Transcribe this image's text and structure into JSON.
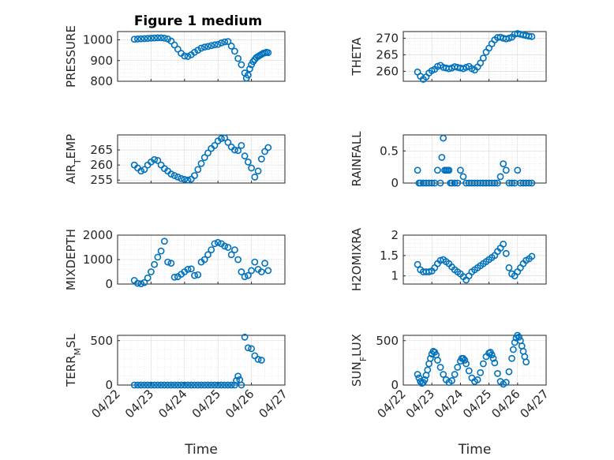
{
  "figure": {
    "title": "Figure 1 medium",
    "marker_color": "#0072bd"
  },
  "chart_data": [
    {
      "type": "scatter",
      "id": "pressure",
      "ylabel": "PRESSURE",
      "ylim": [
        800,
        1040
      ],
      "yticks": [
        800,
        900,
        1000
      ],
      "xlim": [
        "04/22",
        "04/27"
      ],
      "xticks": [
        "04/22",
        "04/23",
        "04/24",
        "04/25",
        "04/26",
        "04/27"
      ],
      "grid": true,
      "series": [
        {
          "x": [
            0.5,
            0.6,
            0.7,
            0.8,
            0.9,
            1.0,
            1.1,
            1.2,
            1.3,
            1.4,
            1.5,
            1.6,
            1.7,
            1.8,
            1.9,
            2.0,
            2.1,
            2.2,
            2.3,
            2.4,
            2.5,
            2.6,
            2.7,
            2.8,
            2.9,
            3.0,
            3.1,
            3.2,
            3.3,
            3.4,
            3.5,
            3.6,
            3.7,
            3.8,
            3.85,
            3.9,
            3.95,
            4.0,
            4.05,
            4.1,
            4.15,
            4.2,
            4.25,
            4.3,
            4.35,
            4.4,
            4.45,
            4.5
          ],
          "y": [
            1003,
            1004,
            1005,
            1006,
            1007,
            1008,
            1009,
            1010,
            1010,
            1008,
            1004,
            994,
            975,
            955,
            935,
            922,
            920,
            928,
            940,
            950,
            960,
            965,
            968,
            972,
            976,
            978,
            985,
            990,
            992,
            970,
            945,
            910,
            880,
            840,
            815,
            830,
            860,
            880,
            895,
            905,
            915,
            920,
            925,
            930,
            935,
            937,
            940,
            938
          ]
        }
      ]
    },
    {
      "type": "scatter",
      "id": "theta",
      "ylabel": "THETA",
      "ylim": [
        257,
        272
      ],
      "yticks": [
        260,
        265,
        270
      ],
      "xlim": [
        "04/22",
        "04/27"
      ],
      "xticks": [
        "04/22",
        "04/23",
        "04/24",
        "04/25",
        "04/26",
        "04/27"
      ],
      "grid": true,
      "series": [
        {
          "x": [
            0.5,
            0.6,
            0.7,
            0.8,
            0.9,
            1.0,
            1.1,
            1.2,
            1.3,
            1.4,
            1.5,
            1.6,
            1.7,
            1.8,
            1.9,
            2.0,
            2.1,
            2.2,
            2.3,
            2.4,
            2.5,
            2.6,
            2.7,
            2.8,
            2.9,
            3.0,
            3.1,
            3.2,
            3.3,
            3.4,
            3.5,
            3.6,
            3.7,
            3.8,
            3.9,
            4.0,
            4.1,
            4.2,
            4.3,
            4.4,
            4.5
          ],
          "y": [
            259.8,
            258.5,
            257.6,
            258.3,
            259.5,
            260.2,
            260.6,
            261.5,
            261.8,
            261.2,
            261.0,
            260.8,
            261.0,
            261.4,
            261.2,
            261.0,
            260.8,
            261.2,
            261.5,
            260.8,
            260.4,
            261.3,
            262.5,
            264.0,
            265.8,
            267.0,
            268.3,
            269.5,
            270.2,
            270.3,
            270.0,
            269.8,
            270.0,
            270.3,
            271.2,
            271.4,
            271.2,
            271.0,
            270.8,
            270.6,
            270.5
          ]
        }
      ]
    },
    {
      "type": "scatter",
      "id": "air_temp",
      "ylabel": "AIR_TEMP",
      "ylim": [
        254,
        270
      ],
      "yticks": [
        255,
        260,
        265
      ],
      "xlim": [
        "04/22",
        "04/27"
      ],
      "xticks": [
        "04/22",
        "04/23",
        "04/24",
        "04/25",
        "04/26",
        "04/27"
      ],
      "grid": true,
      "series": [
        {
          "x": [
            0.5,
            0.6,
            0.7,
            0.8,
            0.9,
            1.0,
            1.1,
            1.2,
            1.3,
            1.4,
            1.5,
            1.6,
            1.7,
            1.8,
            1.9,
            2.0,
            2.1,
            2.2,
            2.3,
            2.4,
            2.5,
            2.6,
            2.7,
            2.8,
            2.9,
            3.0,
            3.1,
            3.2,
            3.3,
            3.4,
            3.5,
            3.6,
            3.7,
            3.8,
            3.9,
            4.0,
            4.1,
            4.2,
            4.3,
            4.4,
            4.5
          ],
          "y": [
            260.0,
            259.0,
            258.0,
            258.5,
            260.0,
            261.0,
            261.8,
            261.5,
            260.0,
            258.8,
            258.0,
            257.0,
            256.5,
            256.0,
            255.5,
            255.2,
            255.0,
            255.3,
            256.5,
            258.5,
            260.5,
            262.5,
            264.0,
            265.5,
            266.5,
            268.0,
            268.8,
            269.0,
            267.5,
            266.0,
            265.0,
            264.8,
            266.5,
            263.0,
            261.0,
            259.0,
            256.0,
            258.0,
            262.0,
            264.5,
            265.8
          ]
        }
      ]
    },
    {
      "type": "scatter",
      "id": "rainfall",
      "ylabel": "RAINFALL",
      "ylim": [
        0,
        0.75
      ],
      "yticks": [
        0,
        0.5
      ],
      "xlim": [
        "04/22",
        "04/27"
      ],
      "xticks": [
        "04/22",
        "04/23",
        "04/24",
        "04/25",
        "04/26",
        "04/27"
      ],
      "grid": true,
      "series": [
        {
          "x": [
            0.5,
            0.55,
            0.6,
            0.7,
            0.8,
            0.9,
            1.0,
            1.1,
            1.2,
            1.3,
            1.35,
            1.4,
            1.45,
            1.5,
            1.55,
            1.6,
            1.65,
            1.7,
            1.8,
            1.9,
            2.0,
            2.1,
            2.2,
            2.3,
            2.4,
            2.5,
            2.6,
            2.7,
            2.8,
            2.9,
            3.0,
            3.1,
            3.2,
            3.3,
            3.4,
            3.5,
            3.6,
            3.7,
            3.8,
            3.9,
            4.0,
            4.1,
            4.2,
            4.3,
            4.4,
            4.5
          ],
          "y": [
            0.2,
            0,
            0,
            0,
            0,
            0,
            0,
            0,
            0.2,
            0,
            0.4,
            0.7,
            0.2,
            0.2,
            0.2,
            0.2,
            0,
            0,
            0,
            0,
            0.2,
            0.1,
            0,
            0,
            0,
            0,
            0,
            0,
            0,
            0,
            0,
            0,
            0,
            0,
            0.1,
            0.3,
            0.2,
            0,
            0,
            0,
            0.2,
            0,
            0,
            0,
            0,
            0
          ]
        }
      ]
    },
    {
      "type": "scatter",
      "id": "mixdepth",
      "ylabel": "MIXDEPTH",
      "ylim": [
        0,
        2000
      ],
      "yticks": [
        0,
        1000,
        2000
      ],
      "xlim": [
        "04/22",
        "04/27"
      ],
      "xticks": [
        "04/22",
        "04/23",
        "04/24",
        "04/25",
        "04/26",
        "04/27"
      ],
      "grid": true,
      "series": [
        {
          "x": [
            0.5,
            0.6,
            0.7,
            0.8,
            0.9,
            1.0,
            1.1,
            1.2,
            1.3,
            1.4,
            1.5,
            1.6,
            1.7,
            1.8,
            1.9,
            2.0,
            2.1,
            2.2,
            2.3,
            2.4,
            2.5,
            2.6,
            2.7,
            2.8,
            2.9,
            3.0,
            3.1,
            3.2,
            3.3,
            3.4,
            3.5,
            3.6,
            3.7,
            3.8,
            3.9,
            4.0,
            4.1,
            4.2,
            4.3,
            4.4,
            4.5
          ],
          "y": [
            150,
            30,
            10,
            60,
            250,
            500,
            800,
            1100,
            1350,
            1750,
            900,
            850,
            280,
            300,
            400,
            500,
            600,
            620,
            350,
            380,
            900,
            1000,
            1200,
            1400,
            1650,
            1700,
            1650,
            1550,
            1500,
            1200,
            1400,
            1000,
            500,
            300,
            350,
            550,
            900,
            600,
            500,
            850,
            550
          ]
        }
      ]
    },
    {
      "type": "scatter",
      "id": "h2omixra",
      "ylabel": "H2OMIXRA",
      "ylim": [
        0.8,
        2.0
      ],
      "yticks": [
        1,
        1.5,
        2
      ],
      "xlim": [
        "04/22",
        "04/27"
      ],
      "xticks": [
        "04/22",
        "04/23",
        "04/24",
        "04/25",
        "04/26",
        "04/27"
      ],
      "grid": true,
      "series": [
        {
          "x": [
            0.5,
            0.6,
            0.7,
            0.8,
            0.9,
            1.0,
            1.1,
            1.2,
            1.3,
            1.4,
            1.5,
            1.6,
            1.7,
            1.8,
            1.9,
            2.0,
            2.1,
            2.2,
            2.3,
            2.4,
            2.5,
            2.6,
            2.7,
            2.8,
            2.9,
            3.0,
            3.1,
            3.2,
            3.3,
            3.4,
            3.5,
            3.6,
            3.7,
            3.8,
            3.9,
            4.0,
            4.1,
            4.2,
            4.3,
            4.4,
            4.5
          ],
          "y": [
            1.28,
            1.15,
            1.1,
            1.1,
            1.1,
            1.12,
            1.2,
            1.3,
            1.38,
            1.4,
            1.35,
            1.3,
            1.22,
            1.15,
            1.1,
            1.05,
            0.98,
            0.9,
            1.0,
            1.1,
            1.15,
            1.2,
            1.25,
            1.3,
            1.35,
            1.4,
            1.45,
            1.5,
            1.6,
            1.68,
            1.78,
            1.55,
            1.2,
            1.05,
            1.0,
            1.1,
            1.2,
            1.3,
            1.38,
            1.42,
            1.48
          ]
        }
      ]
    },
    {
      "type": "scatter",
      "id": "terr_msl",
      "ylabel": "TERR_MSL",
      "ylim": [
        0,
        560
      ],
      "yticks": [
        0,
        500
      ],
      "xlim": [
        "04/22",
        "04/27"
      ],
      "xticks": [
        "04/22",
        "04/23",
        "04/24",
        "04/25",
        "04/26",
        "04/27"
      ],
      "grid": true,
      "series": [
        {
          "x": [
            0.5,
            0.6,
            0.7,
            0.8,
            0.9,
            1.0,
            1.1,
            1.2,
            1.3,
            1.4,
            1.5,
            1.6,
            1.7,
            1.8,
            1.9,
            2.0,
            2.1,
            2.2,
            2.3,
            2.4,
            2.5,
            2.6,
            2.7,
            2.8,
            2.9,
            3.0,
            3.1,
            3.2,
            3.3,
            3.4,
            3.5,
            3.55,
            3.6,
            3.65,
            3.7,
            3.8,
            3.9,
            4.0,
            4.1,
            4.2,
            4.3
          ],
          "y": [
            0,
            0,
            0,
            0,
            0,
            0,
            0,
            0,
            0,
            0,
            0,
            0,
            0,
            0,
            0,
            0,
            0,
            0,
            0,
            0,
            0,
            0,
            0,
            0,
            0,
            0,
            0,
            0,
            0,
            0,
            0,
            50,
            100,
            60,
            0,
            540,
            420,
            410,
            330,
            290,
            280
          ]
        }
      ]
    },
    {
      "type": "scatter",
      "id": "sun_flux",
      "ylabel": "SUN_FLUX",
      "ylim": [
        0,
        560
      ],
      "yticks": [
        0,
        500
      ],
      "xlim": [
        "04/22",
        "04/27"
      ],
      "xticks": [
        "04/22",
        "04/23",
        "04/24",
        "04/25",
        "04/26",
        "04/27"
      ],
      "grid": true,
      "series": [
        {
          "x": [
            0.5,
            0.55,
            0.6,
            0.65,
            0.7,
            0.75,
            0.8,
            0.85,
            0.9,
            0.95,
            1.0,
            1.05,
            1.1,
            1.15,
            1.2,
            1.3,
            1.4,
            1.5,
            1.6,
            1.7,
            1.8,
            1.9,
            2.0,
            2.05,
            2.1,
            2.15,
            2.2,
            2.3,
            2.4,
            2.5,
            2.6,
            2.7,
            2.8,
            2.9,
            3.0,
            3.05,
            3.1,
            3.15,
            3.2,
            3.3,
            3.4,
            3.5,
            3.6,
            3.7,
            3.8,
            3.85,
            3.9,
            3.95,
            4.0,
            4.05,
            4.1,
            4.15,
            4.2,
            4.25,
            4.3
          ],
          "y": [
            120,
            80,
            40,
            20,
            30,
            60,
            110,
            170,
            240,
            300,
            350,
            380,
            370,
            340,
            280,
            200,
            120,
            60,
            30,
            50,
            120,
            200,
            270,
            300,
            300,
            280,
            240,
            160,
            80,
            40,
            60,
            140,
            240,
            320,
            360,
            370,
            340,
            300,
            250,
            130,
            40,
            10,
            30,
            150,
            300,
            400,
            480,
            530,
            560,
            540,
            500,
            440,
            380,
            320,
            260
          ]
        }
      ]
    }
  ]
}
